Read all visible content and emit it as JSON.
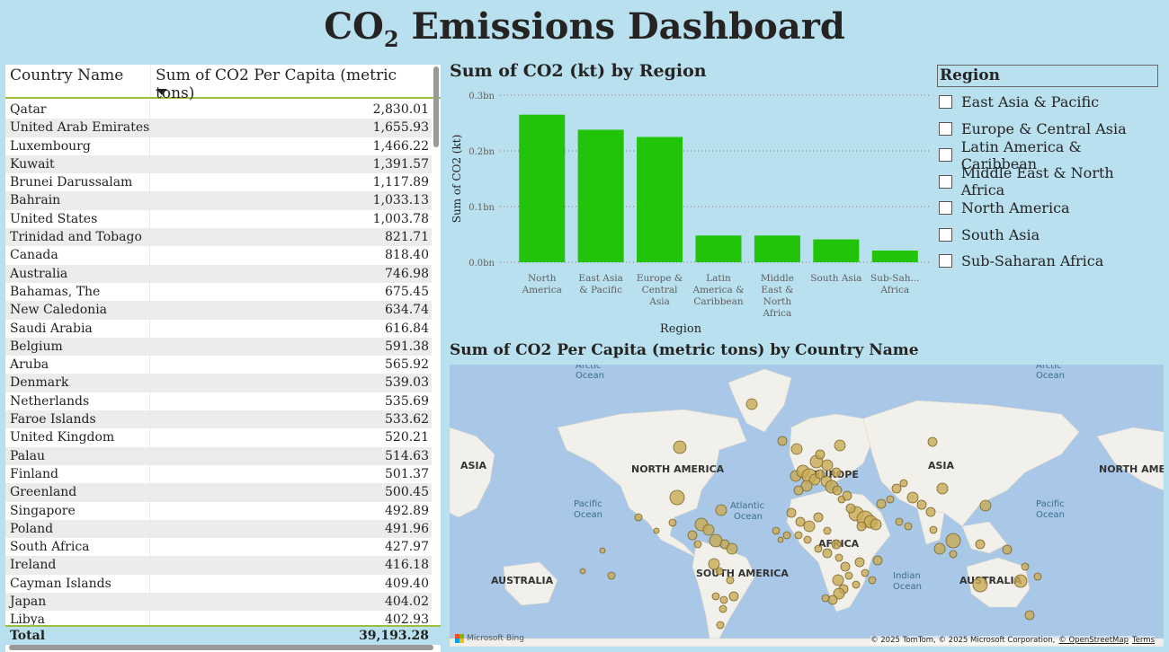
{
  "title": {
    "prefix": "CO",
    "sub": "2",
    "suffix": " Emissions Dashboard"
  },
  "table": {
    "headers": [
      "Country Name",
      "Sum of CO2 Per Capita (metric tons)"
    ],
    "rows": [
      [
        "Qatar",
        "2,830.01"
      ],
      [
        "United Arab Emirates",
        "1,655.93"
      ],
      [
        "Luxembourg",
        "1,466.22"
      ],
      [
        "Kuwait",
        "1,391.57"
      ],
      [
        "Brunei Darussalam",
        "1,117.89"
      ],
      [
        "Bahrain",
        "1,033.13"
      ],
      [
        "United States",
        "1,003.78"
      ],
      [
        "Trinidad and Tobago",
        "821.71"
      ],
      [
        "Canada",
        "818.40"
      ],
      [
        "Australia",
        "746.98"
      ],
      [
        "Bahamas, The",
        "675.45"
      ],
      [
        "New Caledonia",
        "634.74"
      ],
      [
        "Saudi Arabia",
        "616.84"
      ],
      [
        "Belgium",
        "591.38"
      ],
      [
        "Aruba",
        "565.92"
      ],
      [
        "Denmark",
        "539.03"
      ],
      [
        "Netherlands",
        "535.69"
      ],
      [
        "Faroe Islands",
        "533.62"
      ],
      [
        "United Kingdom",
        "520.21"
      ],
      [
        "Palau",
        "514.63"
      ],
      [
        "Finland",
        "501.37"
      ],
      [
        "Greenland",
        "500.45"
      ],
      [
        "Singapore",
        "492.89"
      ],
      [
        "Poland",
        "491.96"
      ],
      [
        "South Africa",
        "427.97"
      ],
      [
        "Ireland",
        "416.18"
      ],
      [
        "Cayman Islands",
        "409.40"
      ],
      [
        "Japan",
        "404.02"
      ],
      [
        "Libya",
        "402.93"
      ]
    ],
    "total_label": "Total",
    "total_value": "39,193.28"
  },
  "bar_chart": {
    "title": "Sum of CO2 (kt) by Region"
  },
  "chart_data": {
    "type": "bar",
    "title": "Sum of CO2 (kt) by Region",
    "xlabel": "Region",
    "ylabel": "Sum of CO2 (kt)",
    "ylim": [
      0,
      0.3
    ],
    "yticks": [
      "0.0bn",
      "0.1bn",
      "0.2bn",
      "0.3bn"
    ],
    "grid": true,
    "categories": [
      [
        "North",
        "America"
      ],
      [
        "East Asia",
        "& Pacific"
      ],
      [
        "Europe &",
        "Central",
        "Asia"
      ],
      [
        "Latin",
        "America &",
        "Caribbean"
      ],
      [
        "Middle",
        "East &",
        "North",
        "Africa"
      ],
      [
        "South Asia"
      ],
      [
        "Sub-Sah...",
        "Africa"
      ]
    ],
    "values": [
      0.265,
      0.238,
      0.225,
      0.048,
      0.048,
      0.041,
      0.021
    ],
    "color": "#22c40a"
  },
  "slicer": {
    "title": "Region",
    "items": [
      "East Asia & Pacific",
      "Europe & Central Asia",
      "Latin America & Caribbean",
      "Middle East & North Africa",
      "North America",
      "South Asia",
      "Sub-Saharan Africa"
    ]
  },
  "map": {
    "title": "Sum of CO2 Per Capita (metric tons) by Country Name",
    "labels": {
      "asia_left": "ASIA",
      "north_america": "NORTH AMERICA",
      "europe": "EUROPE",
      "asia": "ASIA",
      "north_america_right": "NORTH AME",
      "pacific_left_1": "Pacific",
      "pacific_left_2": "Ocean",
      "atlantic_1": "Atlantic",
      "atlantic_2": "Ocean",
      "pacific_right_1": "Pacific",
      "pacific_right_2": "Ocean",
      "arctic_left_1": "Arctic",
      "arctic_left_2": "Ocean",
      "arctic_right_1": "Arctic",
      "arctic_right_2": "Ocean",
      "africa": "AFRICA",
      "south_america": "SOUTH AMERICA",
      "australia_left": "AUSTRALIA",
      "australia": "AUSTRALIA",
      "indian_1": "Indian",
      "indian_2": "Ocean"
    },
    "bing_label": "Microsoft Bing",
    "copyright": "© 2025 TomTom, © 2025 Microsoft Corporation,",
    "osm": "© OpenStreetMap",
    "terms": "Terms",
    "bubble_color": "#c9ab55"
  }
}
